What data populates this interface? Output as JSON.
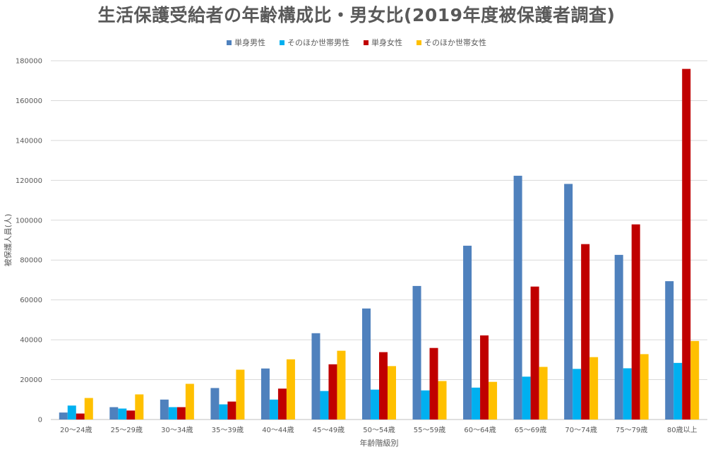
{
  "chart_data": {
    "type": "bar",
    "title": "生活保護受給者の年齢構成比・男女比(2019年度被保護者調査)",
    "xlabel": "年齢階級別",
    "ylabel": "被保護人員(人)",
    "ylim": [
      0,
      180000
    ],
    "yticks": [
      "0",
      "20000",
      "40000",
      "60000",
      "80000",
      "100000",
      "120000",
      "140000",
      "160000",
      "180000"
    ],
    "grid": true,
    "legend_position": "top",
    "categories": [
      "20〜24歳",
      "25〜29歳",
      "30〜34歳",
      "35〜39歳",
      "40〜44歳",
      "45〜49歳",
      "50〜54歳",
      "55〜59歳",
      "60〜64歳",
      "65〜69歳",
      "70〜74歳",
      "75〜79歳",
      "80歳以上"
    ],
    "series": [
      {
        "name": "単身男性",
        "color": "#4f81bd",
        "values": [
          3500,
          6200,
          10000,
          15800,
          25600,
          43300,
          55700,
          67000,
          87200,
          122300,
          118200,
          82600,
          69400
        ]
      },
      {
        "name": "そのほか世帯男性",
        "color": "#00b0f0",
        "values": [
          7000,
          5500,
          6200,
          7600,
          10000,
          14300,
          15000,
          14600,
          16000,
          21500,
          25400,
          25700,
          28400
        ]
      },
      {
        "name": "単身女性",
        "color": "#c00000",
        "values": [
          3000,
          4500,
          6200,
          9000,
          15500,
          27700,
          33800,
          35900,
          42200,
          66700,
          88000,
          97900,
          175900
        ]
      },
      {
        "name": "そのほか世帯女性",
        "color": "#ffc000",
        "values": [
          10800,
          12600,
          17900,
          25000,
          30200,
          34500,
          26800,
          19300,
          18900,
          26400,
          31300,
          32800,
          39400
        ]
      }
    ]
  }
}
